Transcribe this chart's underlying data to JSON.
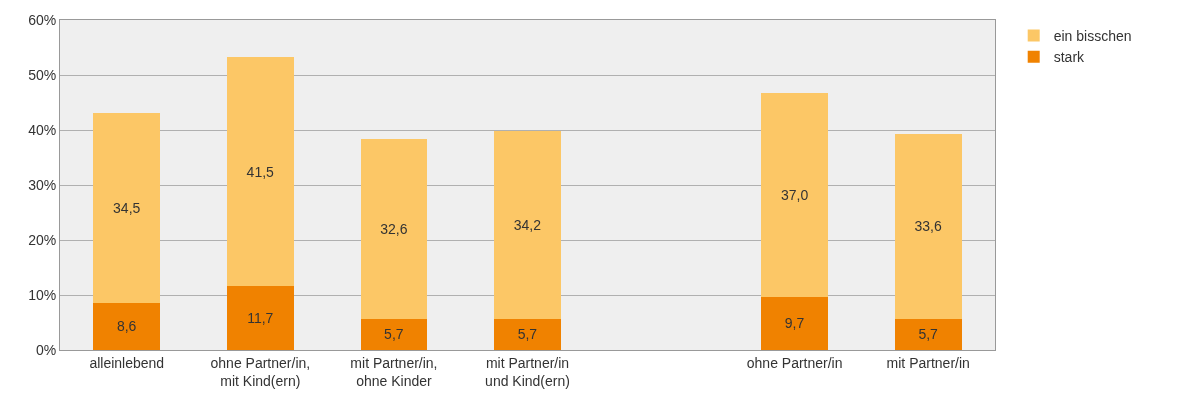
{
  "chart_data": {
    "type": "bar",
    "stacked": true,
    "categories": [
      "alleinlebend",
      "ohne Partner/in,\nmit Kind(ern)",
      "mit Partner/in,\nohne Kinder",
      "mit Partner/in\nund Kind(ern)",
      null,
      "ohne Partner/in",
      "mit Partner/in"
    ],
    "series": [
      {
        "name": "stark",
        "color": "#f08200",
        "values": [
          8.6,
          11.7,
          5.7,
          5.7,
          null,
          9.7,
          5.7
        ],
        "value_labels": [
          "8,6",
          "11,7",
          "5,7",
          "5,7",
          null,
          "9,7",
          "5,7"
        ]
      },
      {
        "name": "ein bisschen",
        "color": "#fcc766",
        "values": [
          34.5,
          41.5,
          32.6,
          34.2,
          null,
          37.0,
          33.6
        ],
        "value_labels": [
          "34,5",
          "41,5",
          "32,6",
          "34,2",
          null,
          "37,0",
          "33,6"
        ]
      }
    ],
    "ylim": [
      0,
      60
    ],
    "yticks": [
      {
        "value": 0,
        "label": "0%"
      },
      {
        "value": 10,
        "label": "10%"
      },
      {
        "value": 20,
        "label": "20%"
      },
      {
        "value": 30,
        "label": "30%"
      },
      {
        "value": 40,
        "label": "40%"
      },
      {
        "value": 50,
        "label": "50%"
      },
      {
        "value": 60,
        "label": "60%"
      }
    ],
    "grid": "y",
    "legend": "top right"
  }
}
